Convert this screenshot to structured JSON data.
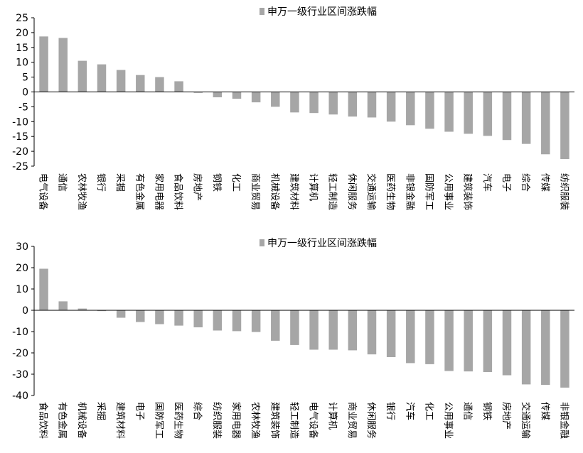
{
  "chart_data": [
    {
      "type": "bar",
      "legend": "申万一级行业区间涨跌幅",
      "legend_position": "top-center",
      "bar_color": "#A6A6A6",
      "grid": false,
      "ylim": [
        -25,
        25
      ],
      "yticks": [
        25,
        20,
        15,
        10,
        5,
        0,
        -5,
        -10,
        -15,
        -20,
        -25
      ],
      "categories": [
        "电气设备",
        "通信",
        "农林牧渔",
        "银行",
        "采掘",
        "有色金属",
        "家用电器",
        "食品饮料",
        "房地产",
        "钢铁",
        "化工",
        "商业贸易",
        "机械设备",
        "建筑材料",
        "计算机",
        "轻工制造",
        "休闲服务",
        "交通运输",
        "医药生物",
        "非银金融",
        "国防军工",
        "公用事业",
        "建筑装饰",
        "汽车",
        "电子",
        "综合",
        "传媒",
        "纺织服装"
      ],
      "values": [
        18.7,
        18.2,
        10.5,
        9.3,
        7.4,
        5.7,
        5.0,
        3.6,
        -0.3,
        -1.8,
        -2.3,
        -3.5,
        -5.0,
        -6.9,
        -7.1,
        -7.6,
        -8.3,
        -8.6,
        -10.0,
        -11.2,
        -12.4,
        -13.4,
        -14.1,
        -14.8,
        -16.2,
        -17.5,
        -21.0,
        -22.6
      ]
    },
    {
      "type": "bar",
      "legend": "申万一级行业区间涨跌幅",
      "legend_position": "top-center",
      "bar_color": "#A6A6A6",
      "grid": false,
      "ylim": [
        -40,
        30
      ],
      "yticks": [
        30,
        20,
        10,
        0,
        -10,
        -20,
        -30,
        -40
      ],
      "categories": [
        "食品饮料",
        "有色金属",
        "机械设备",
        "采掘",
        "建筑材料",
        "电子",
        "国防军工",
        "医药生物",
        "综合",
        "纺织服装",
        "家用电器",
        "农林牧渔",
        "建筑装饰",
        "轻工制造",
        "电气设备",
        "计算机",
        "商业贸易",
        "休闲服务",
        "银行",
        "汽车",
        "化工",
        "公用事业",
        "通信",
        "钢铁",
        "房地产",
        "交通运输",
        "传媒",
        "非银金融"
      ],
      "values": [
        19.5,
        4.2,
        0.8,
        -0.4,
        -3.5,
        -5.5,
        -6.5,
        -7.2,
        -8.0,
        -9.5,
        -9.8,
        -10.2,
        -14.3,
        -16.3,
        -18.5,
        -18.5,
        -18.8,
        -20.7,
        -22.0,
        -24.8,
        -25.3,
        -28.5,
        -28.7,
        -29.0,
        -30.5,
        -34.8,
        -35.0,
        -36.3
      ]
    }
  ]
}
